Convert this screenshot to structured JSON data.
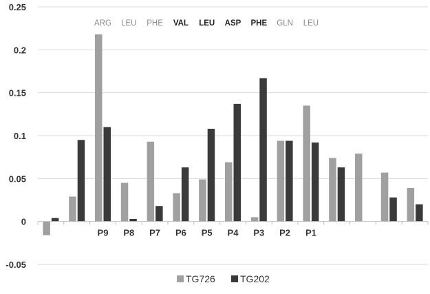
{
  "chart_data": {
    "type": "bar",
    "title": "",
    "xlabel": "",
    "ylabel": "",
    "ylim": [
      -0.05,
      0.25
    ],
    "yticks": [
      -0.05,
      0,
      0.05,
      0.1,
      0.15,
      0.2,
      0.25
    ],
    "ytick_labels": [
      "-0.05",
      "0",
      "0.05",
      "0.1",
      "0.15",
      "0.2",
      "0.25"
    ],
    "grid": true,
    "legend_position": "bottom-center",
    "categories": [
      "",
      "",
      "P9",
      "P8",
      "P7",
      "P6",
      "P5",
      "P4",
      "P3",
      "P2",
      "P1",
      "",
      "",
      "",
      ""
    ],
    "residue_labels": [
      {
        "text": "ARG",
        "index": 2,
        "color": "#8a8a8a",
        "bold": false
      },
      {
        "text": "LEU",
        "index": 3,
        "color": "#8a8a8a",
        "bold": false
      },
      {
        "text": "PHE",
        "index": 4,
        "color": "#8a8a8a",
        "bold": false
      },
      {
        "text": "VAL",
        "index": 5,
        "color": "#222222",
        "bold": true
      },
      {
        "text": "LEU",
        "index": 6,
        "color": "#222222",
        "bold": true
      },
      {
        "text": "ASP",
        "index": 7,
        "color": "#222222",
        "bold": true
      },
      {
        "text": "PHE",
        "index": 8,
        "color": "#222222",
        "bold": true
      },
      {
        "text": "GLN",
        "index": 9,
        "color": "#8a8a8a",
        "bold": false
      },
      {
        "text": "LEU",
        "index": 10,
        "color": "#8a8a8a",
        "bold": false
      }
    ],
    "series": [
      {
        "name": "TG726",
        "color": "#a0a0a0",
        "values": [
          -0.016,
          0.029,
          0.218,
          0.045,
          0.093,
          0.033,
          0.049,
          0.069,
          0.005,
          0.094,
          0.135,
          0.074,
          0.079,
          0.057,
          0.039
        ]
      },
      {
        "name": "TG202",
        "color": "#3a3a3a",
        "values": [
          0.004,
          0.095,
          0.11,
          0.003,
          0.018,
          0.063,
          0.108,
          0.137,
          0.167,
          0.094,
          0.092,
          0.063,
          null,
          0.028,
          0.02
        ]
      }
    ]
  }
}
